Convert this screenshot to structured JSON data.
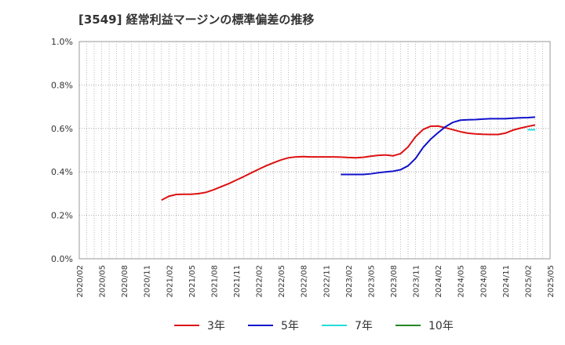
{
  "chart_data": {
    "type": "line",
    "title": "[3549]  経常利益マージンの標準偏差の推移",
    "xlabel": "",
    "ylabel": "",
    "ylim": [
      0.0,
      1.0
    ],
    "yticks": [
      "0.0%",
      "0.2%",
      "0.4%",
      "0.6%",
      "0.8%",
      "1.0%"
    ],
    "xticks": [
      "2020/02",
      "2020/05",
      "2020/08",
      "2020/11",
      "2021/02",
      "2021/05",
      "2021/08",
      "2021/11",
      "2022/02",
      "2022/05",
      "2022/08",
      "2022/11",
      "2023/02",
      "2023/05",
      "2023/08",
      "2023/11",
      "2024/02",
      "2024/05",
      "2024/08",
      "2024/11",
      "2025/02",
      "2025/05"
    ],
    "grid": true,
    "legend_position": "bottom",
    "series": [
      {
        "name": "3年",
        "color": "#dd1111",
        "points": [
          [
            "2021/01",
            0.27
          ],
          [
            "2021/02",
            0.288
          ],
          [
            "2021/03",
            0.296
          ],
          [
            "2021/04",
            0.297
          ],
          [
            "2021/05",
            0.297
          ],
          [
            "2021/06",
            0.3
          ],
          [
            "2021/07",
            0.306
          ],
          [
            "2021/08",
            0.318
          ],
          [
            "2021/09",
            0.332
          ],
          [
            "2021/10",
            0.346
          ],
          [
            "2021/11",
            0.362
          ],
          [
            "2021/12",
            0.378
          ],
          [
            "2022/01",
            0.395
          ],
          [
            "2022/02",
            0.412
          ],
          [
            "2022/03",
            0.428
          ],
          [
            "2022/04",
            0.442
          ],
          [
            "2022/05",
            0.455
          ],
          [
            "2022/06",
            0.465
          ],
          [
            "2022/07",
            0.469
          ],
          [
            "2022/08",
            0.47
          ],
          [
            "2022/09",
            0.469
          ],
          [
            "2022/10",
            0.469
          ],
          [
            "2022/11",
            0.469
          ],
          [
            "2022/12",
            0.469
          ],
          [
            "2023/01",
            0.468
          ],
          [
            "2023/02",
            0.466
          ],
          [
            "2023/03",
            0.465
          ],
          [
            "2023/04",
            0.467
          ],
          [
            "2023/05",
            0.472
          ],
          [
            "2023/06",
            0.476
          ],
          [
            "2023/07",
            0.478
          ],
          [
            "2023/08",
            0.474
          ],
          [
            "2023/09",
            0.484
          ],
          [
            "2023/10",
            0.515
          ],
          [
            "2023/11",
            0.562
          ],
          [
            "2023/12",
            0.595
          ],
          [
            "2024/01",
            0.61
          ],
          [
            "2024/02",
            0.611
          ],
          [
            "2024/03",
            0.603
          ],
          [
            "2024/04",
            0.594
          ],
          [
            "2024/05",
            0.585
          ],
          [
            "2024/06",
            0.578
          ],
          [
            "2024/07",
            0.575
          ],
          [
            "2024/08",
            0.573
          ],
          [
            "2024/09",
            0.572
          ],
          [
            "2024/10",
            0.572
          ],
          [
            "2024/11",
            0.578
          ],
          [
            "2024/12",
            0.592
          ],
          [
            "2025/01",
            0.601
          ],
          [
            "2025/02",
            0.609
          ],
          [
            "2025/03",
            0.616
          ]
        ]
      },
      {
        "name": "5年",
        "color": "#1111cc",
        "points": [
          [
            "2023/01",
            0.388
          ],
          [
            "2023/02",
            0.388
          ],
          [
            "2023/03",
            0.388
          ],
          [
            "2023/04",
            0.388
          ],
          [
            "2023/05",
            0.391
          ],
          [
            "2023/06",
            0.396
          ],
          [
            "2023/07",
            0.4
          ],
          [
            "2023/08",
            0.403
          ],
          [
            "2023/09",
            0.41
          ],
          [
            "2023/10",
            0.428
          ],
          [
            "2023/11",
            0.462
          ],
          [
            "2023/12",
            0.512
          ],
          [
            "2024/01",
            0.55
          ],
          [
            "2024/02",
            0.58
          ],
          [
            "2024/03",
            0.608
          ],
          [
            "2024/04",
            0.628
          ],
          [
            "2024/05",
            0.638
          ],
          [
            "2024/06",
            0.64
          ],
          [
            "2024/07",
            0.641
          ],
          [
            "2024/08",
            0.643
          ],
          [
            "2024/09",
            0.645
          ],
          [
            "2024/10",
            0.645
          ],
          [
            "2024/11",
            0.645
          ],
          [
            "2024/12",
            0.647
          ],
          [
            "2025/01",
            0.649
          ],
          [
            "2025/02",
            0.65
          ],
          [
            "2025/03",
            0.652
          ]
        ]
      },
      {
        "name": "7年",
        "color": "#22dddd",
        "points": [
          [
            "2025/02",
            0.594
          ],
          [
            "2025/03",
            0.594
          ]
        ]
      },
      {
        "name": "10年",
        "color": "#228822",
        "points": []
      }
    ]
  }
}
